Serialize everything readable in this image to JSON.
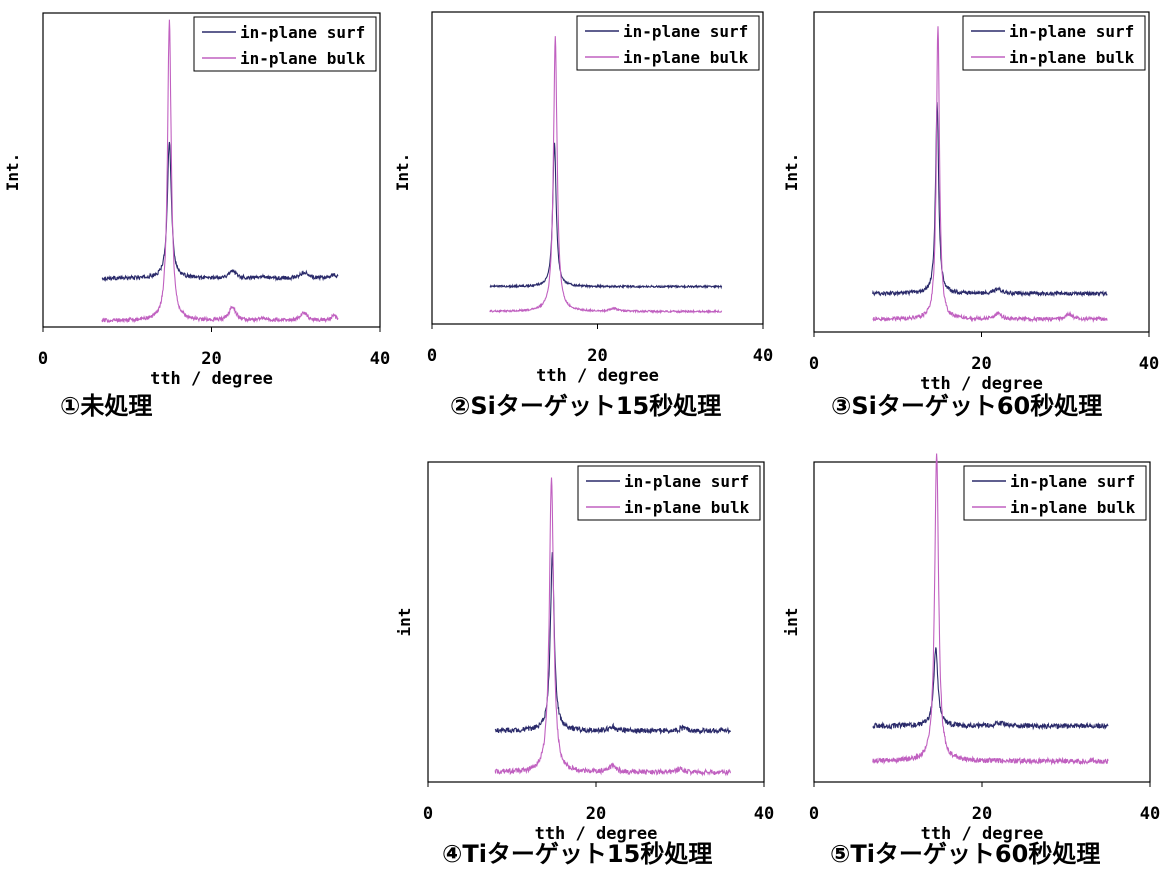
{
  "colors": {
    "surf": "#2a2a6a",
    "bulk": "#c060c0",
    "frame": "#000000",
    "text": "#000000"
  },
  "chart_data": [
    {
      "type": "line",
      "caption": "①未処理",
      "xlabel": "tth / degree",
      "ylabel": "Int.",
      "xlim": [
        0,
        40
      ],
      "xticks": [
        0,
        20,
        40
      ],
      "grid": false,
      "legend_position": "top-right",
      "x_range": [
        7,
        35
      ],
      "series": [
        {
          "name": "in-plane surf",
          "baseline": 0.155,
          "noise": 0.006,
          "peaks": [
            {
              "x": 15.0,
              "height": 0.44,
              "width": 0.28
            },
            {
              "x": 22.5,
              "height": 0.025,
              "width": 0.5
            },
            {
              "x": 26.0,
              "height": 0.008,
              "width": 0.4
            },
            {
              "x": 31.0,
              "height": 0.02,
              "width": 0.5
            },
            {
              "x": 34.5,
              "height": 0.012,
              "width": 0.4
            }
          ]
        },
        {
          "name": "in-plane bulk",
          "baseline": 0.02,
          "noise": 0.006,
          "peaks": [
            {
              "x": 15.0,
              "height": 0.96,
              "width": 0.26
            },
            {
              "x": 22.5,
              "height": 0.045,
              "width": 0.45
            },
            {
              "x": 26.0,
              "height": 0.01,
              "width": 0.4
            },
            {
              "x": 31.0,
              "height": 0.025,
              "width": 0.5
            },
            {
              "x": 34.5,
              "height": 0.015,
              "width": 0.4
            }
          ]
        }
      ]
    },
    {
      "type": "line",
      "caption": "②Siターゲット15秒処理",
      "xlabel": "tth / degree",
      "ylabel": "Int.",
      "xlim": [
        0,
        40
      ],
      "xticks": [
        0,
        20,
        40
      ],
      "grid": false,
      "legend_position": "top-right",
      "x_range": [
        7,
        35
      ],
      "series": [
        {
          "name": "in-plane surf",
          "baseline": 0.12,
          "noise": 0.003,
          "peaks": [
            {
              "x": 14.8,
              "height": 0.46,
              "width": 0.25
            }
          ]
        },
        {
          "name": "in-plane bulk",
          "baseline": 0.04,
          "noise": 0.003,
          "peaks": [
            {
              "x": 14.9,
              "height": 0.88,
              "width": 0.26
            },
            {
              "x": 22.0,
              "height": 0.01,
              "width": 0.5
            }
          ]
        }
      ]
    },
    {
      "type": "line",
      "caption": "③Siターゲット60秒処理",
      "xlabel": "tth / degree",
      "ylabel": "Int.",
      "xlim": [
        0,
        40
      ],
      "xticks": [
        0,
        20,
        40
      ],
      "grid": false,
      "legend_position": "top-right",
      "x_range": [
        7,
        35
      ],
      "series": [
        {
          "name": "in-plane surf",
          "baseline": 0.12,
          "noise": 0.006,
          "peaks": [
            {
              "x": 14.7,
              "height": 0.6,
              "width": 0.22
            },
            {
              "x": 22.0,
              "height": 0.015,
              "width": 0.5
            }
          ]
        },
        {
          "name": "in-plane bulk",
          "baseline": 0.04,
          "noise": 0.006,
          "peaks": [
            {
              "x": 14.8,
              "height": 0.92,
              "width": 0.22
            },
            {
              "x": 22.0,
              "height": 0.02,
              "width": 0.4
            },
            {
              "x": 30.5,
              "height": 0.015,
              "width": 0.5
            }
          ]
        }
      ]
    },
    {
      "type": "line",
      "caption": "④Tiターゲット15秒処理",
      "xlabel": "tth / degree",
      "ylabel": "int",
      "xlim": [
        0,
        40
      ],
      "xticks": [
        0,
        20,
        40
      ],
      "grid": false,
      "legend_position": "top-right",
      "x_range": [
        8,
        36
      ],
      "series": [
        {
          "name": "in-plane surf",
          "baseline": 0.16,
          "noise": 0.008,
          "peaks": [
            {
              "x": 14.8,
              "height": 0.55,
              "width": 0.28
            },
            {
              "x": 22.0,
              "height": 0.012,
              "width": 0.5
            },
            {
              "x": 30.5,
              "height": 0.01,
              "width": 0.5
            }
          ]
        },
        {
          "name": "in-plane bulk",
          "baseline": 0.03,
          "noise": 0.008,
          "peaks": [
            {
              "x": 14.7,
              "height": 0.92,
              "width": 0.3
            },
            {
              "x": 22.0,
              "height": 0.02,
              "width": 0.5
            },
            {
              "x": 30.0,
              "height": 0.01,
              "width": 0.5
            }
          ]
        }
      ]
    },
    {
      "type": "line",
      "caption": "⑤Tiターゲット60秒処理",
      "xlabel": "tth / degree",
      "ylabel": "int",
      "xlim": [
        0,
        40
      ],
      "xticks": [
        0,
        20,
        40
      ],
      "grid": false,
      "legend_position": "top-right",
      "x_range": [
        7,
        35
      ],
      "series": [
        {
          "name": "in-plane surf",
          "baseline": 0.175,
          "noise": 0.008,
          "peaks": [
            {
              "x": 14.5,
              "height": 0.24,
              "width": 0.3
            },
            {
              "x": 22.0,
              "height": 0.01,
              "width": 0.6
            }
          ]
        },
        {
          "name": "in-plane bulk",
          "baseline": 0.065,
          "noise": 0.008,
          "peaks": [
            {
              "x": 14.6,
              "height": 0.96,
              "width": 0.28
            }
          ]
        }
      ]
    }
  ]
}
